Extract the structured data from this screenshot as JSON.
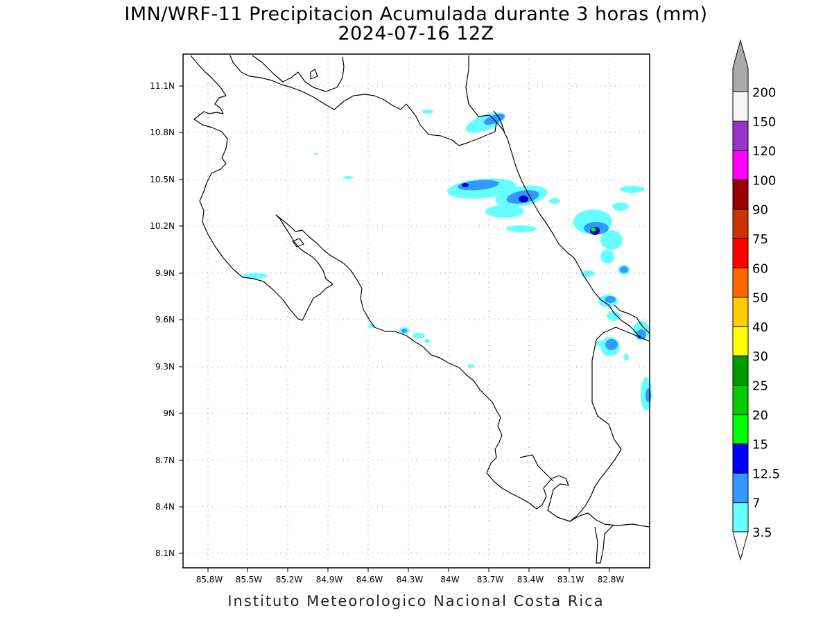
{
  "header": {
    "title": "IMN/WRF-11 Precipitacion Acumulada durante 3 horas (mm)",
    "subtitle": "2024-07-16 12Z"
  },
  "footer": {
    "credit": "Instituto Meteorologico Nacional Costa Rica"
  },
  "axes": {
    "lat_ticks": [
      "11.1N",
      "10.8N",
      "10.5N",
      "10.2N",
      "9.9N",
      "9.6N",
      "9.3N",
      "9N",
      "8.7N",
      "8.4N",
      "8.1N"
    ],
    "lon_ticks": [
      "85.8W",
      "85.5W",
      "85.2W",
      "84.9W",
      "84.6W",
      "84.3W",
      "84W",
      "83.7W",
      "83.4W",
      "83.1W",
      "82.8W"
    ],
    "lon_range": [
      -86.05,
      -82.75
    ],
    "lat_range": [
      8.0,
      11.3
    ],
    "grid": "dotted"
  },
  "colorbar": {
    "labels": [
      "3.5",
      "7",
      "12.5",
      "15",
      "20",
      "25",
      "30",
      "40",
      "50",
      "60",
      "75",
      "90",
      "100",
      "120",
      "150",
      "200"
    ],
    "colors": [
      "#66ffff",
      "#3399ff",
      "#0000ff",
      "#00ff00",
      "#00cc00",
      "#009900",
      "#ffff00",
      "#ffcc00",
      "#ff6600",
      "#ff0000",
      "#cc3300",
      "#990000",
      "#ff00ff",
      "#9933cc",
      "#f5f5f5",
      "#aaaaaa"
    ]
  }
}
